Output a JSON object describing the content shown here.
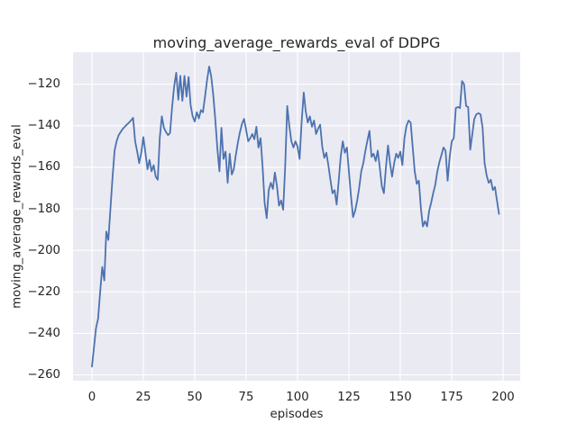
{
  "style": {
    "figure_bg": "#ffffff",
    "axes_bg": "#eaeaf2",
    "grid_color": "#ffffff",
    "text_color": "#262626",
    "line_color": "#4c72b0"
  },
  "chart_data": {
    "type": "line",
    "title": "moving_average_rewards_eval of DDPG",
    "xlabel": "episodes",
    "ylabel": "moving_average_rewards_eval",
    "grid": true,
    "legend": "none",
    "xlim": [
      -9.2,
      208.3
    ],
    "ylim": [
      -262.8,
      -104.6
    ],
    "x_tick_values": [
      0,
      25,
      50,
      75,
      100,
      125,
      150,
      175,
      200
    ],
    "x_tick_labels": [
      "0",
      "25",
      "50",
      "75",
      "100",
      "125",
      "150",
      "175",
      "200"
    ],
    "y_tick_values": [
      -120,
      -140,
      -160,
      -180,
      -200,
      -220,
      -240,
      -260
    ],
    "y_tick_labels": [
      "−120",
      "−140",
      "−160",
      "−180",
      "−200",
      "−220",
      "−240",
      "−260"
    ],
    "series": [
      {
        "name": "moving_average_rewards_eval",
        "color": "#4c72b0",
        "x_start": 0,
        "x_step": 1,
        "values": [
          -256,
          -246.5,
          -237.5,
          -233,
          -220,
          -208,
          -214.5,
          -191,
          -195,
          -180,
          -165,
          -152,
          -147.5,
          -144.5,
          -143,
          -141.5,
          -140.5,
          -139.5,
          -138.5,
          -137.5,
          -136.2,
          -147.5,
          -152.5,
          -158,
          -153,
          -145.5,
          -153,
          -161,
          -156.5,
          -162,
          -159,
          -164.5,
          -166,
          -146,
          -135.5,
          -141,
          -143,
          -144.5,
          -143.5,
          -131,
          -121,
          -114.5,
          -127.5,
          -116,
          -128,
          -116,
          -126,
          -116.5,
          -130,
          -135.5,
          -138,
          -133.5,
          -136.5,
          -132.5,
          -133.5,
          -126,
          -118,
          -111.5,
          -116,
          -125,
          -137,
          -151,
          -162,
          -141,
          -156,
          -152.5,
          -167.5,
          -153.5,
          -163.5,
          -161,
          -154,
          -148,
          -143,
          -139,
          -136.7,
          -142,
          -147.5,
          -146,
          -144,
          -146.5,
          -140.5,
          -150.5,
          -146,
          -160,
          -177,
          -184.5,
          -171,
          -167.5,
          -170.5,
          -162.5,
          -169,
          -178.5,
          -176,
          -180.5,
          -160,
          -130.5,
          -140,
          -147.5,
          -150.5,
          -147.5,
          -150,
          -156,
          -138,
          -124,
          -133,
          -138.5,
          -135.5,
          -140.5,
          -137.5,
          -144,
          -141.5,
          -139.5,
          -150,
          -155.5,
          -153,
          -159,
          -166,
          -172.5,
          -171,
          -178,
          -167,
          -155,
          -147.5,
          -153,
          -150.5,
          -162,
          -174,
          -184,
          -181,
          -176,
          -170,
          -162,
          -158,
          -152,
          -147,
          -142.5,
          -155,
          -153.5,
          -157,
          -152,
          -160,
          -169,
          -172.5,
          -160,
          -149.5,
          -158,
          -164.5,
          -158,
          -153.5,
          -155.5,
          -152.5,
          -159,
          -146,
          -140,
          -137.5,
          -138.5,
          -150,
          -162,
          -168,
          -166.5,
          -180,
          -188.5,
          -186,
          -188.5,
          -181,
          -177,
          -172.5,
          -168.5,
          -162,
          -157.5,
          -154,
          -150.5,
          -152,
          -166.5,
          -155,
          -147.5,
          -146,
          -131.5,
          -131,
          -131.5,
          -118.5,
          -120,
          -130.5,
          -131,
          -151.5,
          -144,
          -136.7,
          -134.5,
          -134,
          -134.5,
          -141,
          -158,
          -164,
          -167.5,
          -166,
          -171,
          -169.5,
          -176,
          -182.5
        ]
      }
    ]
  }
}
